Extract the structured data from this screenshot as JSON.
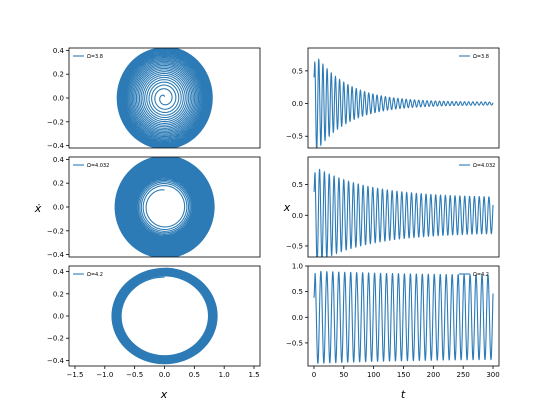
{
  "chart_data": [
    {
      "id": "phase-1",
      "type": "line",
      "kind": "phase",
      "legend": "Ω=3.8",
      "legend_position": "upper-left",
      "xlim": [
        -1.6,
        1.6
      ],
      "ylim": [
        -0.42,
        0.42
      ],
      "yticks": [
        0.4,
        0.2,
        0.0,
        -0.2,
        -0.4
      ],
      "ytick_labels": [
        "0.4",
        "0.2",
        "0.0",
        "−0.2",
        "−0.4"
      ],
      "show_xticks": false,
      "series": [
        {
          "start": [
            0.0,
            0.0
          ],
          "outer_amplitude_x": 0.82,
          "outer_amplitude_v": 0.43,
          "inner_amplitude": 0.02,
          "loops": 28
        }
      ]
    },
    {
      "id": "phase-2",
      "type": "line",
      "kind": "phase",
      "legend": "Ω=4.032",
      "legend_position": "upper-left",
      "xlim": [
        -1.6,
        1.6
      ],
      "ylim": [
        -0.42,
        0.42
      ],
      "yticks": [
        0.4,
        0.2,
        0.0,
        -0.2,
        -0.4
      ],
      "ytick_labels": [
        "0.4",
        "0.2",
        "0.0",
        "−0.2",
        "−0.4"
      ],
      "show_xticks": false,
      "series": [
        {
          "start": [
            0.0,
            0.0
          ],
          "outer_amplitude_x": 0.85,
          "outer_amplitude_v": 0.43,
          "inner_amplitude": 0.28,
          "loops": 40
        }
      ]
    },
    {
      "id": "phase-3",
      "type": "line",
      "kind": "phase",
      "legend": "Ω=4.2",
      "legend_position": "upper-left",
      "xlim": [
        -1.6,
        1.6
      ],
      "ylim": [
        -0.45,
        0.45
      ],
      "yticks": [
        0.4,
        0.2,
        0.0,
        -0.2,
        -0.4
      ],
      "ytick_labels": [
        "0.4",
        "0.2",
        "0.0",
        "−0.2",
        "−0.4"
      ],
      "xticks": [
        -1.5,
        -1.0,
        -0.5,
        0.0,
        0.5,
        1.0,
        1.5
      ],
      "xtick_labels": [
        "−1.5",
        "−1.0",
        "−0.5",
        "0.0",
        "0.5",
        "1.0",
        "1.5"
      ],
      "show_xticks": true,
      "series": [
        {
          "start": [
            0.3,
            0.38
          ],
          "outer_amplitude_x": 0.9,
          "outer_amplitude_v": 0.43,
          "inner_amplitude": 0.73,
          "loops": 30
        }
      ]
    },
    {
      "id": "time-1",
      "type": "line",
      "kind": "time",
      "legend": "Ω=3.8",
      "legend_position": "upper-right",
      "xlim": [
        -10,
        310
      ],
      "ylim": [
        -0.68,
        0.85
      ],
      "yticks": [
        0.5,
        0.0,
        -0.5
      ],
      "ytick_labels": [
        "0.5",
        "0.0",
        "−0.5"
      ],
      "show_xticks": false,
      "series": [
        {
          "t_range": [
            0,
            300
          ],
          "start_value": 0.4,
          "initial_amplitude": 0.78,
          "final_amplitude": 0.02,
          "decay_time": 55,
          "cycles": 43
        }
      ]
    },
    {
      "id": "time-2",
      "type": "line",
      "kind": "time",
      "legend": "Ω=4.032",
      "legend_position": "upper-right",
      "xlim": [
        -10,
        310
      ],
      "ylim": [
        -0.68,
        0.95
      ],
      "yticks": [
        0.5,
        0.0,
        -0.5
      ],
      "ytick_labels": [
        "0.5",
        "0.0",
        "−0.5"
      ],
      "show_xticks": false,
      "series": [
        {
          "t_range": [
            0,
            300
          ],
          "start_value": 0.38,
          "initial_amplitude": 0.8,
          "final_amplitude": 0.28,
          "decay_time": 90,
          "cycles": 37
        }
      ]
    },
    {
      "id": "time-3",
      "type": "line",
      "kind": "time",
      "legend": "Ω=4.2",
      "legend_position": "upper-right",
      "xlim": [
        -10,
        310
      ],
      "ylim": [
        -0.95,
        1.0
      ],
      "yticks": [
        1.0,
        0.5,
        0.0,
        -0.5
      ],
      "ytick_labels": [
        "1.0",
        "0.5",
        "0.0",
        "−0.5"
      ],
      "xticks": [
        0,
        50,
        100,
        150,
        200,
        250,
        300
      ],
      "xtick_labels": [
        "0",
        "50",
        "100",
        "150",
        "200",
        "250",
        "300"
      ],
      "show_xticks": true,
      "series": [
        {
          "t_range": [
            0,
            300
          ],
          "start_value": 0.38,
          "initial_amplitude": 0.9,
          "final_amplitude": 0.8,
          "decay_time": 200,
          "cycles": 30
        }
      ]
    }
  ],
  "axis_labels": {
    "phase_y": "ẋ",
    "phase_x": "x",
    "time_y": "x",
    "time_x": "t"
  },
  "colors": {
    "line": "#2c7bb6",
    "axes": "#000000"
  }
}
